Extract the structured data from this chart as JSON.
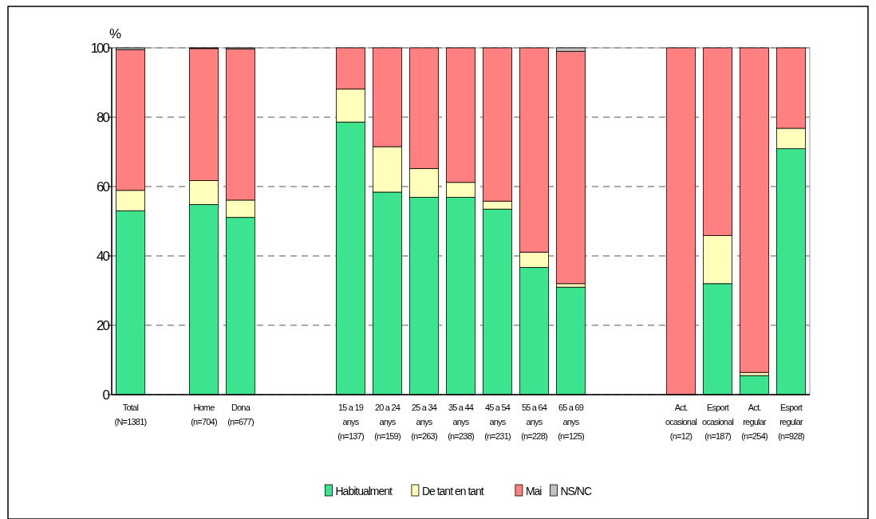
{
  "chart_data": {
    "type": "bar",
    "stacked": true,
    "ylabel": "%",
    "categories": [
      "Total\n(N=1381)",
      null,
      "Home\n(n=704)",
      "Dona\n(n=677)",
      null,
      null,
      "15 a 19\nanys\n(n=137)",
      "20 a 24\nanys\n(n=159)",
      "25 a 34\nanys\n(n=263)",
      "35 a 44\nanys\n(n=238)",
      "45 a 54\nanys\n(n=231)",
      "55 a 64\nanys\n(n=228)",
      "65 a 69\nanys\n(n=125)",
      null,
      null,
      "Act.\nocasional\n(n=12)",
      "Esport\nocasional\n(n=187)",
      "Act.\nregular\n(n=254)",
      "Esport\nregular\n(n=928)"
    ],
    "series": [
      {
        "name": "Habitualment",
        "color": "#3ce48f",
        "values": [
          53.0,
          null,
          54.8,
          51.1,
          null,
          null,
          78.6,
          58.4,
          56.9,
          56.9,
          53.5,
          36.7,
          31.0,
          null,
          null,
          0,
          32.0,
          5.5,
          70.9
        ]
      },
      {
        "name": "De tant en tant",
        "color": "#ffffbb",
        "values": [
          5.9,
          null,
          6.9,
          5.0,
          null,
          null,
          9.5,
          13.1,
          8.3,
          4.3,
          2.3,
          4.4,
          1.0,
          null,
          null,
          0,
          13.9,
          0.9,
          5.9
        ]
      },
      {
        "name": "Mai",
        "color": "#ff8080",
        "values": [
          40.6,
          null,
          38.1,
          43.6,
          null,
          null,
          11.9,
          28.5,
          34.8,
          38.8,
          44.2,
          58.9,
          67.0,
          null,
          null,
          100,
          54.1,
          93.6,
          23.2
        ]
      },
      {
        "name": "NS/NC",
        "color": "#c0c0c0",
        "values": [
          0.5,
          null,
          0.2,
          0.3,
          null,
          null,
          0,
          0,
          0,
          0,
          0,
          0,
          1.0,
          null,
          null,
          0,
          0,
          0,
          0
        ]
      }
    ],
    "ylim": [
      0,
      100
    ],
    "yticks": [
      0,
      20,
      40,
      60,
      80,
      100
    ],
    "grid": "y",
    "legend": "bottom"
  }
}
